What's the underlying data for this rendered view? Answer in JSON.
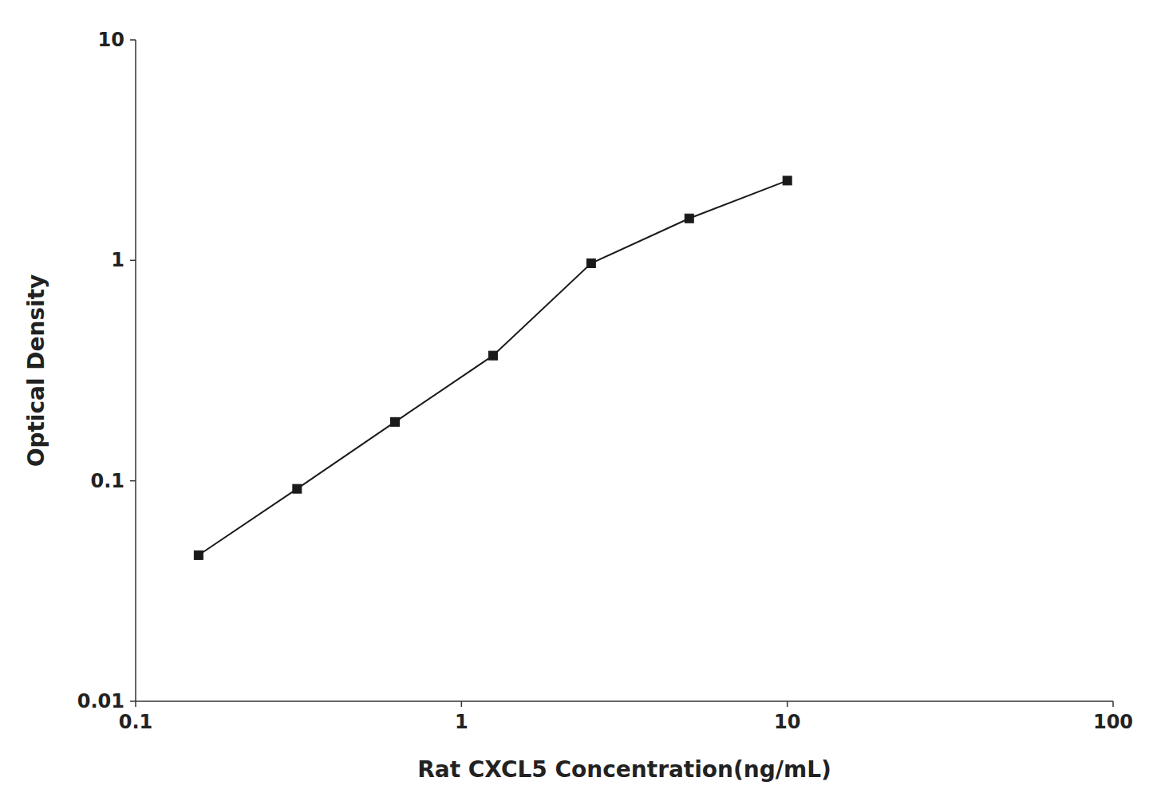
{
  "chart_data": {
    "type": "line",
    "xlabel": "Rat CXCL5 Concentration(ng/mL)",
    "ylabel": "Optical Density",
    "x": [
      0.156,
      0.313,
      0.625,
      1.25,
      2.5,
      5.0,
      10.0
    ],
    "values": [
      0.046,
      0.092,
      0.185,
      0.37,
      0.97,
      1.55,
      2.3
    ],
    "color": "#1a1a1a",
    "marker": "square",
    "log": true,
    "xlim": [
      0.1,
      100
    ],
    "ylim": [
      0.01,
      10
    ],
    "xticks": [
      0.1,
      1,
      10,
      100
    ],
    "yticks": [
      0.01,
      0.1,
      1,
      10
    ]
  }
}
